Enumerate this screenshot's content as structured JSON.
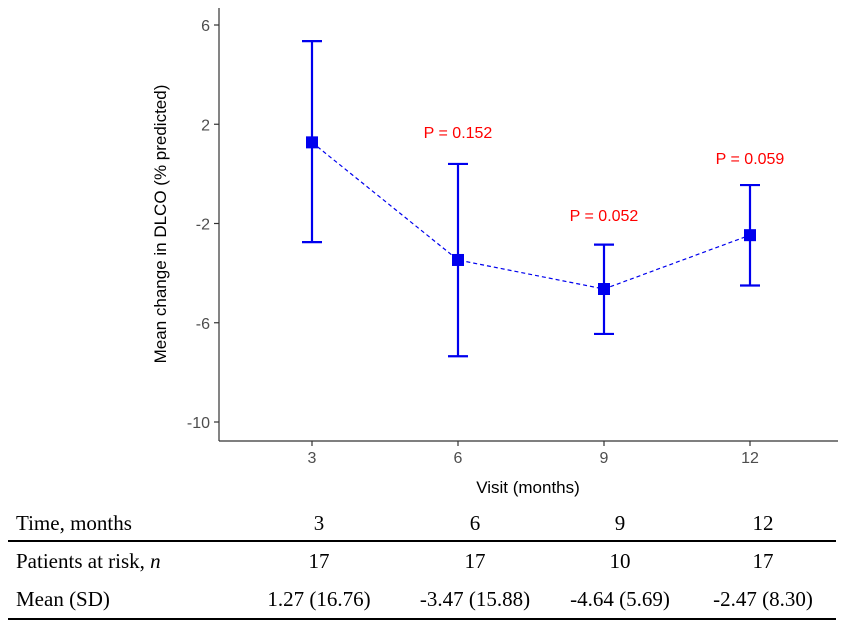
{
  "chart_data": {
    "type": "line",
    "xlabel": "Visit (months)",
    "ylabel": "Mean change in DLCO (% predicted)",
    "ylim": [
      -11,
      7
    ],
    "yticks": [
      6,
      2,
      -2,
      -6,
      -10
    ],
    "yticklabels": [
      "6",
      "2",
      "-2",
      "-6",
      "-10"
    ],
    "categories": [
      "3",
      "6",
      "9",
      "12"
    ],
    "series": [
      {
        "name": "Mean change in DLCO",
        "values": [
          1.27,
          -3.47,
          -4.64,
          -2.47
        ],
        "error_upper": [
          5.35,
          0.4,
          -2.85,
          -0.45
        ],
        "error_lower": [
          -2.75,
          -7.35,
          -6.45,
          -4.5
        ]
      }
    ],
    "annotations": [
      {
        "category": "6",
        "label": "P = 0.152",
        "y": 1.45
      },
      {
        "category": "9",
        "label": "P = 0.052",
        "y": -1.9
      },
      {
        "category": "12",
        "label": "P = 0.059",
        "y": 0.4
      }
    ],
    "colors": {
      "series": "#0000ee",
      "annotation": "#ff0000",
      "axis": "#333333"
    }
  },
  "risk_table": {
    "header": {
      "label": "Time, months",
      "values": [
        "3",
        "6",
        "9",
        "12"
      ]
    },
    "patients": {
      "label": "Patients at risk, ",
      "label_italic": "n",
      "values": [
        "17",
        "17",
        "10",
        "17"
      ]
    },
    "mean": {
      "label": "Mean (SD)",
      "values": [
        "1.27 (16.76)",
        "-3.47 (15.88)",
        "-4.64 (5.69)",
        "-2.47 (8.30)"
      ]
    }
  }
}
